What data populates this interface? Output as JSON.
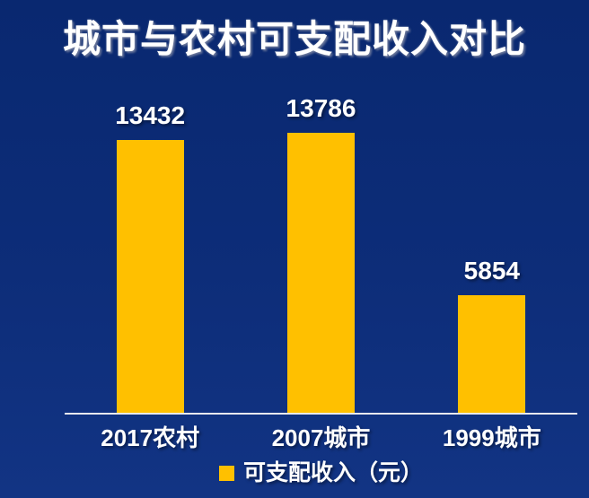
{
  "colors": {
    "background": "#0d2d79",
    "bar": "#FFC000",
    "text": "#FFFFFF",
    "axis_line": "#E9E9EF"
  },
  "legend": {
    "label": "可支配收入（元）",
    "swatch_color": "#FFC000"
  },
  "chart_data": {
    "type": "bar",
    "title": "城市与农村可支配收入对比",
    "categories": [
      "2017农村",
      "2007城市",
      "1999城市"
    ],
    "series": [
      {
        "name": "可支配收入（元）",
        "values": [
          13432,
          13786,
          5854
        ]
      }
    ],
    "data_labels": [
      "13432",
      "13786",
      "5854"
    ],
    "xlabel": "",
    "ylabel": "",
    "ylim": [
      0,
      14000
    ],
    "grid": false,
    "y_axis_visible": false,
    "legend_position": "bottom"
  }
}
